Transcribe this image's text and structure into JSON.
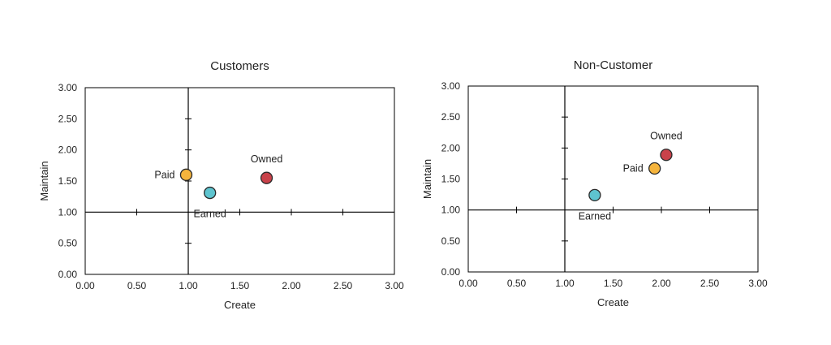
{
  "chart_data": [
    {
      "type": "scatter",
      "title": "Customers",
      "xlabel": "Create",
      "ylabel": "Maintain",
      "xlim": [
        0,
        3
      ],
      "ylim": [
        0,
        3
      ],
      "x_ticks": [
        "0.00",
        "0.50",
        "1.00",
        "1.50",
        "2.00",
        "2.50",
        "3.00"
      ],
      "y_ticks": [
        "0.00",
        "0.50",
        "1.00",
        "1.50",
        "2.00",
        "2.50",
        "3.00"
      ],
      "crosshair": {
        "x": 1.0,
        "y": 1.0
      },
      "grid": false,
      "points": [
        {
          "label": "Paid",
          "x": 0.98,
          "y": 1.6,
          "color": "#f5b43c",
          "label_pos": "left"
        },
        {
          "label": "Earned",
          "x": 1.21,
          "y": 1.31,
          "color": "#5ec4cf",
          "label_pos": "below"
        },
        {
          "label": "Owned",
          "x": 1.76,
          "y": 1.55,
          "color": "#c9424a",
          "label_pos": "above"
        }
      ]
    },
    {
      "type": "scatter",
      "title": "Non-Customer",
      "xlabel": "Create",
      "ylabel": "Maintain",
      "xlim": [
        0,
        3
      ],
      "ylim": [
        0,
        3
      ],
      "x_ticks": [
        "0.00",
        "0.50",
        "1.00",
        "1.50",
        "2.00",
        "2.50",
        "3.00"
      ],
      "y_ticks": [
        "0.00",
        "0.50",
        "1.00",
        "1.50",
        "2.00",
        "2.50",
        "3.00"
      ],
      "crosshair": {
        "x": 1.0,
        "y": 1.0
      },
      "grid": false,
      "points": [
        {
          "label": "Earned",
          "x": 1.31,
          "y": 1.24,
          "color": "#5ec4cf",
          "label_pos": "below"
        },
        {
          "label": "Paid",
          "x": 1.93,
          "y": 1.67,
          "color": "#f5b43c",
          "label_pos": "left"
        },
        {
          "label": "Owned",
          "x": 2.05,
          "y": 1.89,
          "color": "#c9424a",
          "label_pos": "above"
        }
      ]
    }
  ]
}
